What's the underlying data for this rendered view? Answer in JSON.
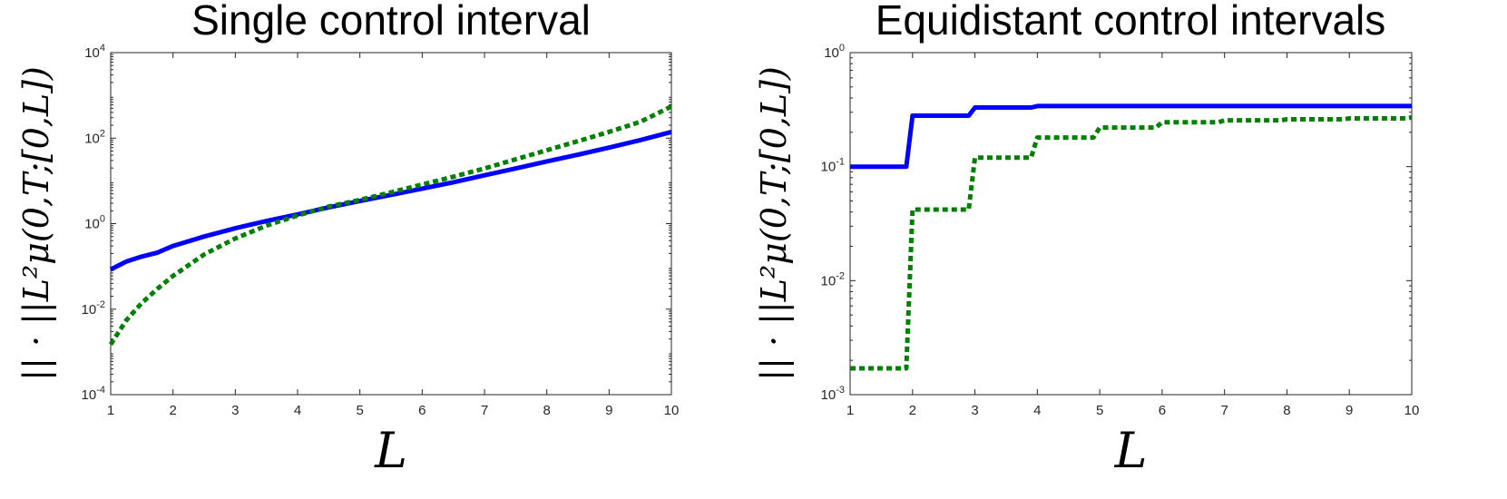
{
  "chart_data": [
    {
      "type": "line",
      "title": "Single control interval",
      "xlabel": "L",
      "ylabel": "|| · ||L²μ(0,T;[0,L])",
      "xlim": [
        1,
        10
      ],
      "ylim": [
        0.0001,
        10000
      ],
      "yscale": "log",
      "grid": false,
      "xticks": [
        "1",
        "2",
        "3",
        "4",
        "5",
        "6",
        "7",
        "8",
        "9",
        "10"
      ],
      "yticks": [
        {
          "base": "10",
          "exp": "-4"
        },
        {
          "base": "10",
          "exp": "-2"
        },
        {
          "base": "10",
          "exp": "0"
        },
        {
          "base": "10",
          "exp": "2"
        },
        {
          "base": "10",
          "exp": "4"
        }
      ],
      "x": [
        1,
        1.25,
        1.5,
        1.75,
        2,
        2.5,
        3,
        3.5,
        4,
        4.5,
        5,
        5.5,
        6,
        6.5,
        7,
        7.5,
        8,
        8.5,
        9,
        9.5,
        10
      ],
      "series": [
        {
          "style": "solid",
          "color": "#0000ff",
          "values": [
            0.085,
            0.13,
            0.17,
            0.21,
            0.3,
            0.5,
            0.78,
            1.15,
            1.65,
            2.4,
            3.4,
            4.7,
            6.6,
            9.3,
            13.5,
            19.5,
            28.5,
            41,
            60,
            90,
            140
          ]
        },
        {
          "style": "dotted",
          "color": "#008000",
          "values": [
            0.0015,
            0.0055,
            0.014,
            0.03,
            0.06,
            0.19,
            0.45,
            0.9,
            1.55,
            2.5,
            3.6,
            5.4,
            8.2,
            12.5,
            19.5,
            32,
            52,
            85,
            140,
            240,
            550
          ]
        }
      ]
    },
    {
      "type": "line",
      "title": "Equidistant control intervals",
      "xlabel": "L",
      "ylabel": "|| · ||L²μ(0,T;[0,L])",
      "xlim": [
        1,
        10
      ],
      "ylim": [
        0.001,
        1
      ],
      "yscale": "log",
      "grid": false,
      "xticks": [
        "1",
        "2",
        "3",
        "4",
        "5",
        "6",
        "7",
        "8",
        "9",
        "10"
      ],
      "yticks": [
        {
          "base": "10",
          "exp": "-3"
        },
        {
          "base": "10",
          "exp": "-2"
        },
        {
          "base": "10",
          "exp": "-1"
        },
        {
          "base": "10",
          "exp": "0"
        }
      ],
      "x": [
        1,
        1.9,
        2,
        2.9,
        3,
        3.9,
        4,
        4.9,
        5,
        5.9,
        6,
        6.9,
        7,
        7.9,
        8,
        8.9,
        9,
        9.9,
        10
      ],
      "series": [
        {
          "style": "solid",
          "color": "#0000ff",
          "values": [
            0.1,
            0.1,
            0.28,
            0.28,
            0.33,
            0.33,
            0.34,
            0.34,
            0.34,
            0.34,
            0.34,
            0.34,
            0.34,
            0.34,
            0.34,
            0.34,
            0.34,
            0.34,
            0.34
          ]
        },
        {
          "style": "dotted",
          "color": "#008000",
          "values": [
            0.0017,
            0.0017,
            0.042,
            0.042,
            0.12,
            0.12,
            0.18,
            0.18,
            0.22,
            0.22,
            0.245,
            0.245,
            0.255,
            0.255,
            0.26,
            0.26,
            0.265,
            0.265,
            0.27
          ]
        }
      ]
    }
  ]
}
